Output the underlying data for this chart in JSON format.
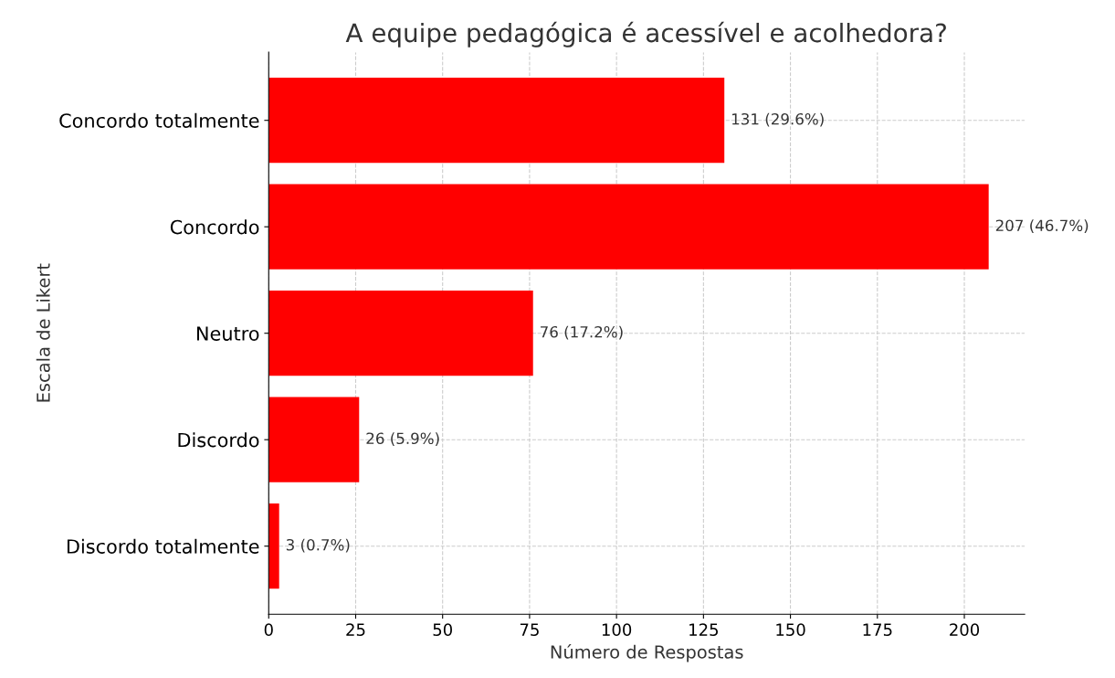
{
  "chart_data": {
    "type": "bar",
    "orientation": "horizontal",
    "title": "A equipe pedagógica é acessível e acolhedora?",
    "xlabel": "Número de Respostas",
    "ylabel": "Escala de Likert",
    "categories": [
      "Concordo totalmente",
      "Concordo",
      "Neutro",
      "Discordo",
      "Discordo totalmente"
    ],
    "values": [
      131,
      207,
      76,
      26,
      3
    ],
    "value_labels": [
      "131 (29.6%)",
      "207 (46.7%)",
      "76 (17.2%)",
      "26 (5.9%)",
      "3 (0.7%)"
    ],
    "color": "#ff0000",
    "xlim": [
      0,
      217.35
    ],
    "xticks": [
      0,
      25,
      50,
      75,
      100,
      125,
      150,
      175,
      200
    ],
    "grid": true,
    "line_style": "dashed"
  }
}
